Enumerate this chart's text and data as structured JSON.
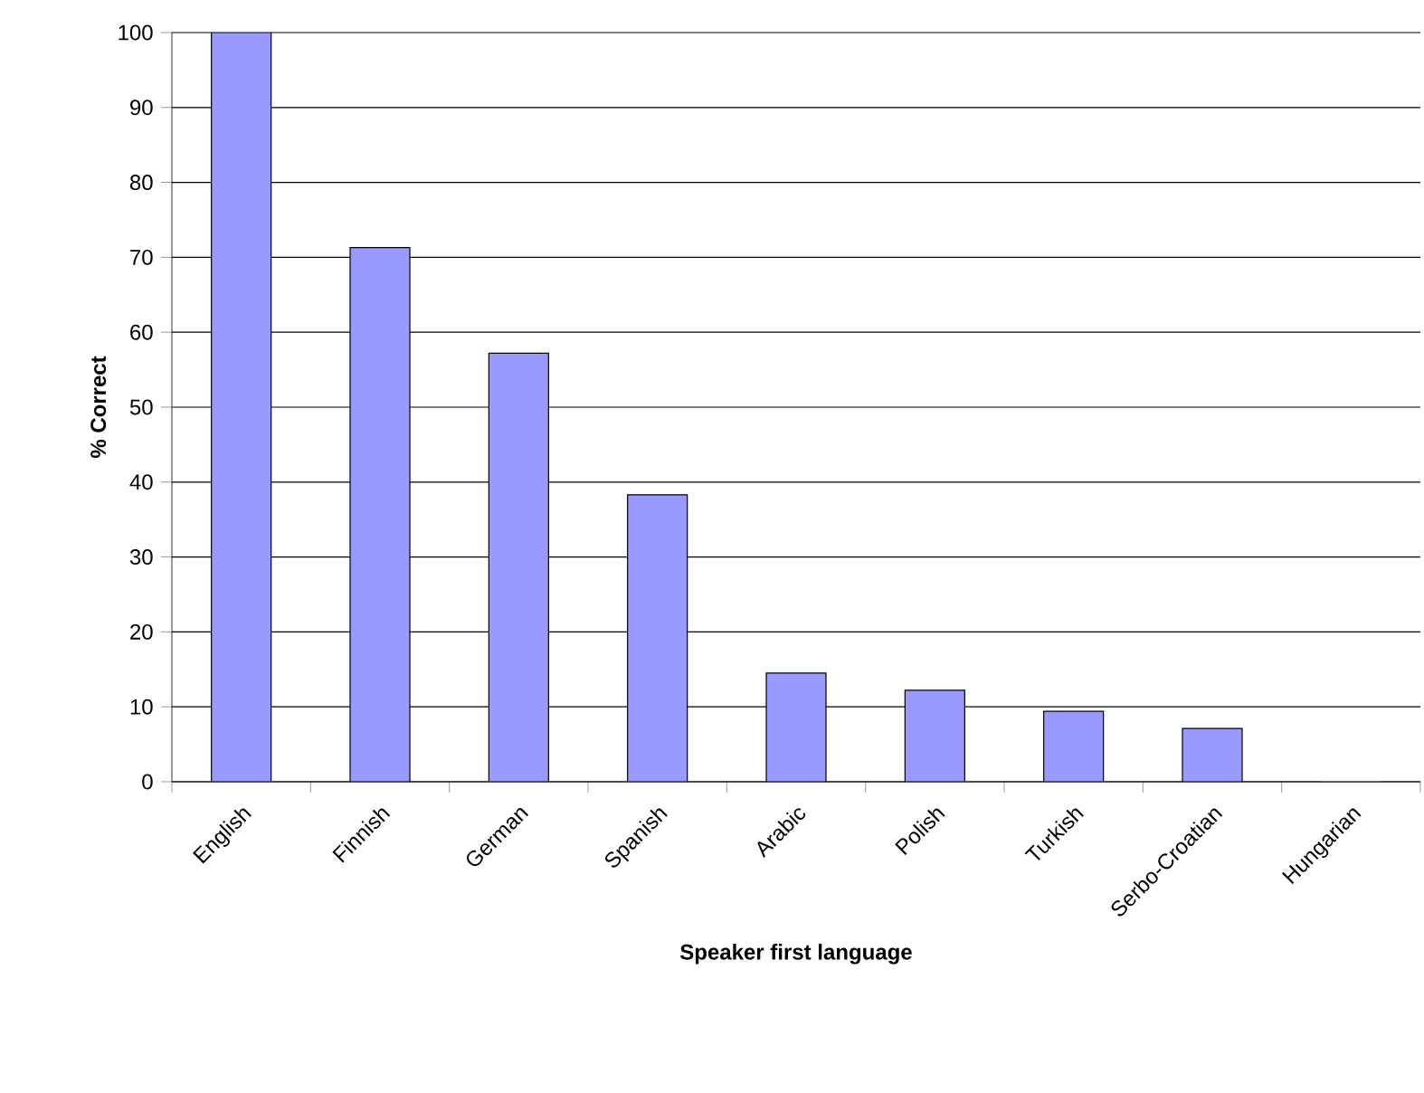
{
  "chart_data": {
    "type": "bar",
    "xlabel": "Speaker first language",
    "ylabel": "% Correct",
    "categories": [
      "English",
      "Finnish",
      "German",
      "Spanish",
      "Arabic",
      "Polish",
      "Turkish",
      "Serbo-Croatian",
      "Hungarian"
    ],
    "values": [
      100,
      71.3,
      57.2,
      38.3,
      14.5,
      12.2,
      9.4,
      7.1,
      0
    ],
    "color": "#9999ff",
    "ylim": [
      0,
      100
    ],
    "yticks": [
      0,
      10,
      20,
      30,
      40,
      50,
      60,
      70,
      80,
      90,
      100
    ],
    "grid": "y"
  }
}
